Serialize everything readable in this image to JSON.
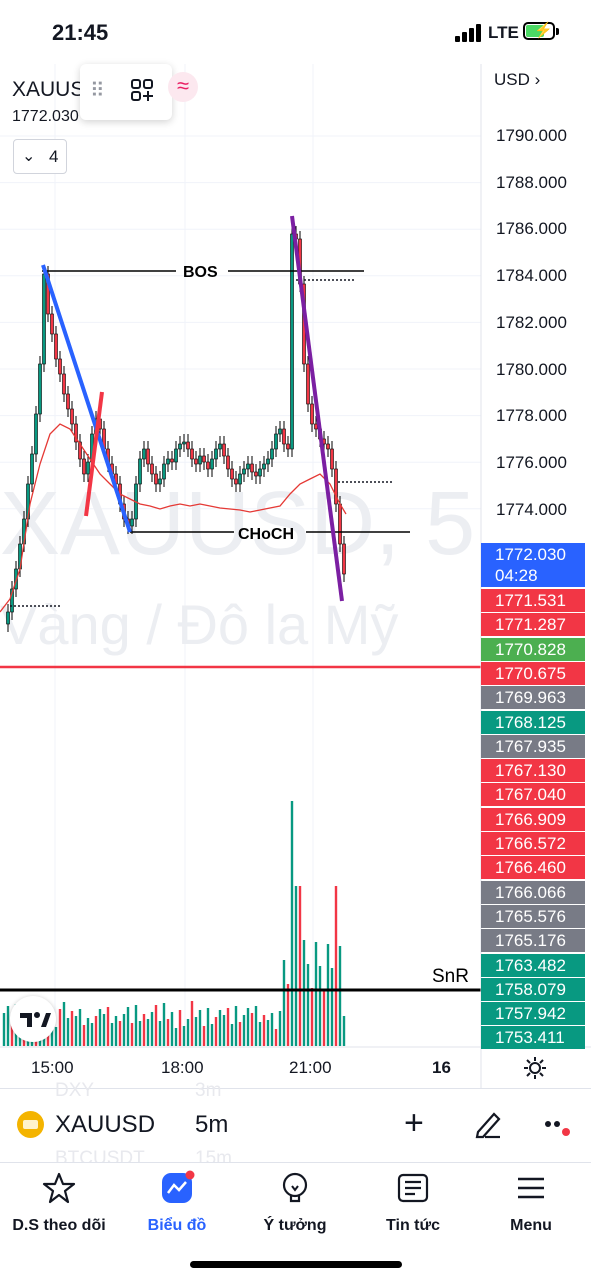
{
  "status_bar": {
    "time": "21:45",
    "network": "LTE"
  },
  "chart": {
    "symbol_header": "XAUUSD",
    "symbol_price": "1772.030",
    "indicator_count": "4",
    "currency": "USD",
    "watermark_title": "XAUUSD, 5",
    "watermark_subtitle": "Vàng / Đô la Mỹ",
    "annotations": {
      "bos": "BOS",
      "choch": "CHoCH",
      "snr": "SnR"
    },
    "price_axis": [
      "1790.000",
      "1788.000",
      "1786.000",
      "1784.000",
      "1782.000",
      "1780.000",
      "1778.000",
      "1776.000",
      "1774.000"
    ],
    "current_price": {
      "price": "1772.030",
      "countdown": "04:28",
      "color": "#2962ff"
    },
    "price_tags": [
      {
        "label": "1771.531",
        "color": "#f23645"
      },
      {
        "label": "1771.287",
        "color": "#f23645"
      },
      {
        "label": "1770.828",
        "color": "#4caf50"
      },
      {
        "label": "1770.675",
        "color": "#f23645"
      },
      {
        "label": "1769.963",
        "color": "#787b86"
      },
      {
        "label": "1768.125",
        "color": "#089981"
      },
      {
        "label": "1767.935",
        "color": "#787b86"
      },
      {
        "label": "1767.130",
        "color": "#f23645"
      },
      {
        "label": "1767.040",
        "color": "#f23645"
      },
      {
        "label": "1766.909",
        "color": "#f23645"
      },
      {
        "label": "1766.572",
        "color": "#f23645"
      },
      {
        "label": "1766.460",
        "color": "#f23645"
      },
      {
        "label": "1766.066",
        "color": "#787b86"
      },
      {
        "label": "1765.576",
        "color": "#787b86"
      },
      {
        "label": "1765.176",
        "color": "#787b86"
      },
      {
        "label": "1763.482",
        "color": "#089981"
      },
      {
        "label": "1758.079",
        "color": "#089981"
      },
      {
        "label": "1757.942",
        "color": "#089981"
      },
      {
        "label": "1753.411",
        "color": "#089981"
      }
    ],
    "time_axis": [
      "15:00",
      "18:00",
      "21:00",
      "16"
    ],
    "colors": {
      "up": "#089981",
      "down": "#f23645",
      "bos_line": "#2962ff",
      "choch_line": "#7b1fa2",
      "ma": "#e53935"
    }
  },
  "symbol_bar": {
    "symbol": "XAUUSD",
    "interval": "5m",
    "ghost_top": [
      "DXY",
      "3m"
    ],
    "ghost_bottom": [
      "BTCUSDT",
      "15m"
    ]
  },
  "bottom_nav": [
    {
      "label": "D.S theo dõi",
      "icon": "star-icon"
    },
    {
      "label": "Biểu đồ",
      "icon": "chart-icon"
    },
    {
      "label": "Ý tưởng",
      "icon": "lightbulb-icon"
    },
    {
      "label": "Tin tức",
      "icon": "news-icon"
    },
    {
      "label": "Menu",
      "icon": "menu-icon"
    }
  ]
}
